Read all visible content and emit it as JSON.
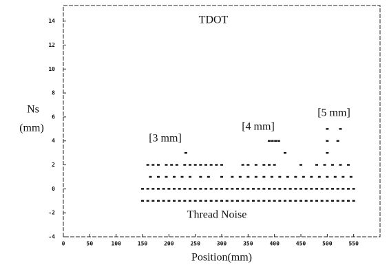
{
  "chart_data": {
    "type": "scatter",
    "title": "TDOT",
    "xlabel": "Position(mm)",
    "ylabel_lines": [
      "Ns",
      "(mm)"
    ],
    "annotations": [
      {
        "text": "[3 mm]"
      },
      {
        "text": "[4 mm]"
      },
      {
        "text": "[5 mm]"
      },
      {
        "text": "Thread Noise"
      }
    ],
    "xlim": [
      0,
      600
    ],
    "ylim": [
      -4,
      15.3
    ],
    "xticks": [
      0,
      50,
      100,
      150,
      200,
      250,
      300,
      350,
      400,
      450,
      500,
      550
    ],
    "yticks": [
      -4,
      -2,
      0,
      2,
      4,
      6,
      8,
      10,
      12,
      14
    ],
    "color": "#111111",
    "series": [
      {
        "x": [
          150,
          160,
          170,
          180,
          190,
          200,
          210,
          220,
          230,
          240,
          250,
          260,
          270,
          280,
          290,
          300,
          310,
          320,
          330,
          340,
          350,
          360,
          370,
          380,
          390,
          400,
          410,
          420,
          430,
          440,
          450,
          460,
          470,
          480,
          490,
          500,
          510,
          520,
          530,
          540,
          550
        ],
        "y": [
          0,
          0,
          0,
          0,
          0,
          0,
          0,
          0,
          0,
          0,
          0,
          0,
          0,
          0,
          0,
          0,
          0,
          0,
          0,
          0,
          0,
          0,
          0,
          0,
          0,
          0,
          0,
          0,
          0,
          0,
          0,
          0,
          0,
          0,
          0,
          0,
          0,
          0,
          0,
          0,
          0
        ]
      },
      {
        "x": [
          150,
          160,
          170,
          180,
          190,
          200,
          210,
          220,
          230,
          240,
          250,
          260,
          270,
          280,
          290,
          300,
          310,
          320,
          330,
          340,
          350,
          360,
          370,
          380,
          390,
          400,
          410,
          420,
          430,
          440,
          450,
          460,
          470,
          480,
          490,
          500,
          510,
          520,
          530,
          540,
          550
        ],
        "y": [
          -1,
          -1,
          -1,
          -1,
          -1,
          -1,
          -1,
          -1,
          -1,
          -1,
          -1,
          -1,
          -1,
          -1,
          -1,
          -1,
          -1,
          -1,
          -1,
          -1,
          -1,
          -1,
          -1,
          -1,
          -1,
          -1,
          -1,
          -1,
          -1,
          -1,
          -1,
          -1,
          -1,
          -1,
          -1,
          -1,
          -1,
          -1,
          -1,
          -1,
          -1
        ]
      },
      {
        "x": [
          165,
          180,
          195,
          210,
          225,
          240,
          260,
          275,
          300,
          320,
          335,
          350,
          365,
          380,
          395,
          410,
          425,
          440,
          455,
          470,
          485,
          500,
          515,
          530,
          545
        ],
        "y": [
          1,
          1,
          1,
          1,
          1,
          1,
          1,
          1,
          1,
          1,
          1,
          1,
          1,
          1,
          1,
          1,
          1,
          1,
          1,
          1,
          1,
          1,
          1,
          1,
          1
        ]
      },
      {
        "x": [
          160,
          170,
          180,
          195,
          205,
          215,
          230,
          240,
          250,
          260,
          270,
          280,
          290,
          300,
          340,
          350,
          365,
          380,
          390,
          400,
          450,
          480,
          495,
          510,
          525,
          540
        ],
        "y": [
          2,
          2,
          2,
          2,
          2,
          2,
          2,
          2,
          2,
          2,
          2,
          2,
          2,
          2,
          2,
          2,
          2,
          2,
          2,
          2,
          2,
          2,
          2,
          2,
          2,
          2
        ]
      },
      {
        "x": [
          232,
          420,
          500
        ],
        "y": [
          3,
          3,
          3
        ]
      },
      {
        "x": [
          390,
          396,
          402,
          408,
          500,
          520
        ],
        "y": [
          4,
          4,
          4,
          4,
          4,
          4
        ]
      },
      {
        "x": [
          500,
          525
        ],
        "y": [
          5,
          5
        ]
      }
    ]
  }
}
